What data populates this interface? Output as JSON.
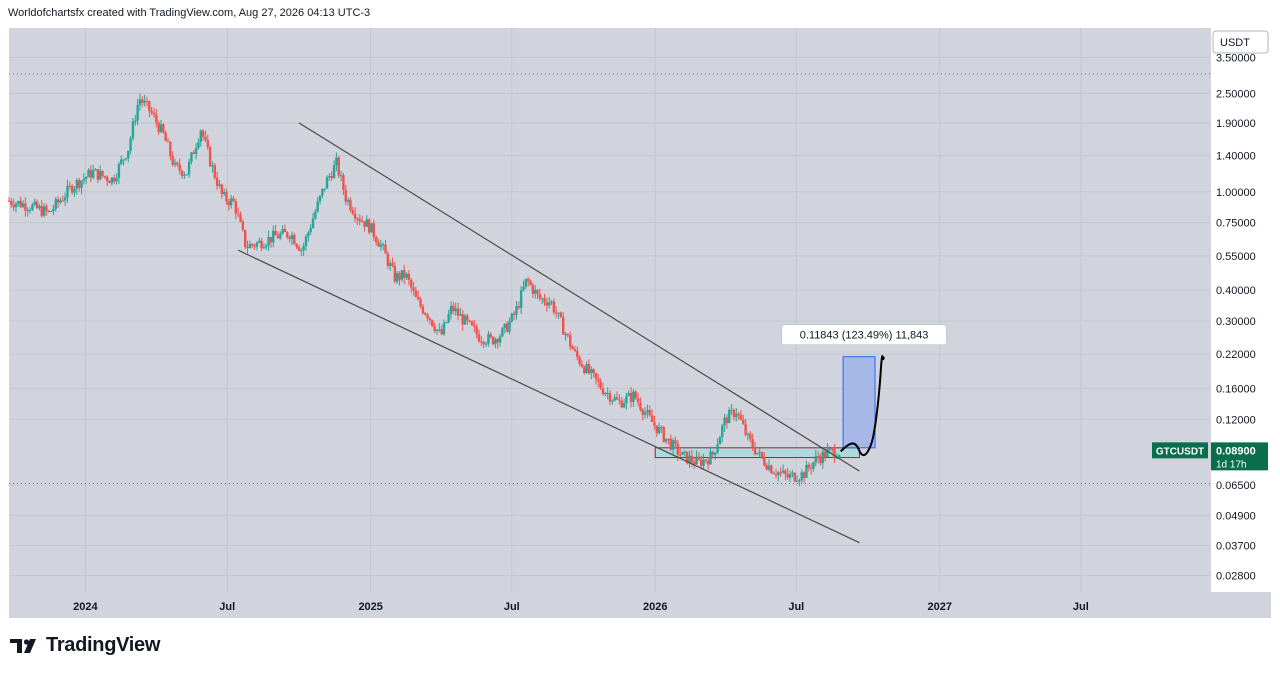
{
  "header": {
    "caption": "Worldofchartsfx created with TradingView.com, Aug 27, 2026 04:13 UTC-3"
  },
  "footer": {
    "brand": "TradingView"
  },
  "colors": {
    "background": "#d1d4dc",
    "grid": "#c3c7d0",
    "candle_up": "#26a69a",
    "candle_down": "#ef5350",
    "trendline": "#4a4a4a",
    "projection_fill": "#9fb3e6",
    "projection_border": "#2962ff",
    "zone_fill": "#a8d8dc",
    "zone_border": "#b2182b",
    "price_label": "#0a6e4d"
  },
  "chart_data": {
    "type": "candlestick",
    "symbol_label": "GTCUSDT",
    "last_price": "0.08900",
    "countdown": "1d 17h",
    "currency": "USDT",
    "y_scale": "log",
    "ylim": [
      0.024,
      4.6
    ],
    "y_ticks": [
      "3.50000",
      "2.50000",
      "1.90000",
      "1.40000",
      "1.00000",
      "0.75000",
      "0.55000",
      "0.40000",
      "0.30000",
      "0.22000",
      "0.16000",
      "0.12000",
      "0.08900",
      "0.06500",
      "0.04900",
      "0.03700",
      "0.02800"
    ],
    "x_ticks": [
      "2024",
      "Jul",
      "2025",
      "Jul",
      "2026",
      "Jul",
      "2027",
      "Jul"
    ],
    "x_tick_dates": [
      "2024-01",
      "2024-07",
      "2025-01",
      "2025-07",
      "2026-01",
      "2026-07",
      "2027-01",
      "2027-07"
    ],
    "xlim": [
      "2023-09-25",
      "2027-12-15"
    ],
    "approx_close_path": [
      [
        "2023-09-25",
        0.92
      ],
      [
        "2023-10-20",
        0.88
      ],
      [
        "2023-11-15",
        0.82
      ],
      [
        "2023-12-15",
        1.05
      ],
      [
        "2024-01-10",
        1.2
      ],
      [
        "2024-02-05",
        1.12
      ],
      [
        "2024-02-25",
        1.5
      ],
      [
        "2024-03-10",
        2.4
      ],
      [
        "2024-03-25",
        2.1
      ],
      [
        "2024-04-10",
        1.7
      ],
      [
        "2024-04-25",
        1.25
      ],
      [
        "2024-05-10",
        1.2
      ],
      [
        "2024-05-28",
        1.8
      ],
      [
        "2024-06-10",
        1.3
      ],
      [
        "2024-06-25",
        0.95
      ],
      [
        "2024-07-10",
        0.9
      ],
      [
        "2024-07-25",
        0.6
      ],
      [
        "2024-08-10",
        0.62
      ],
      [
        "2024-09-01",
        0.66
      ],
      [
        "2024-09-20",
        0.68
      ],
      [
        "2024-10-05",
        0.58
      ],
      [
        "2024-10-20",
        0.8
      ],
      [
        "2024-11-05",
        1.1
      ],
      [
        "2024-11-18",
        1.3
      ],
      [
        "2024-11-30",
        0.95
      ],
      [
        "2024-12-15",
        0.8
      ],
      [
        "2024-12-31",
        0.72
      ],
      [
        "2025-01-15",
        0.6
      ],
      [
        "2025-02-01",
        0.45
      ],
      [
        "2025-02-15",
        0.46
      ],
      [
        "2025-03-01",
        0.36
      ],
      [
        "2025-03-15",
        0.32
      ],
      [
        "2025-04-01",
        0.26
      ],
      [
        "2025-04-15",
        0.34
      ],
      [
        "2025-05-01",
        0.3
      ],
      [
        "2025-05-20",
        0.26
      ],
      [
        "2025-06-05",
        0.25
      ],
      [
        "2025-06-20",
        0.27
      ],
      [
        "2025-07-05",
        0.32
      ],
      [
        "2025-07-20",
        0.44
      ],
      [
        "2025-08-05",
        0.37
      ],
      [
        "2025-08-20",
        0.36
      ],
      [
        "2025-09-05",
        0.28
      ],
      [
        "2025-09-20",
        0.22
      ],
      [
        "2025-10-05",
        0.19
      ],
      [
        "2025-10-25",
        0.16
      ],
      [
        "2025-11-15",
        0.14
      ],
      [
        "2025-12-05",
        0.15
      ],
      [
        "2025-12-25",
        0.12
      ],
      [
        "2026-01-15",
        0.1
      ],
      [
        "2026-02-05",
        0.085
      ],
      [
        "2026-02-25",
        0.08
      ],
      [
        "2026-03-15",
        0.085
      ],
      [
        "2026-04-01",
        0.12
      ],
      [
        "2026-04-15",
        0.13
      ],
      [
        "2026-04-30",
        0.1
      ],
      [
        "2026-05-15",
        0.085
      ],
      [
        "2026-06-01",
        0.075
      ],
      [
        "2026-06-20",
        0.07
      ],
      [
        "2026-07-10",
        0.072
      ],
      [
        "2026-07-25",
        0.082
      ],
      [
        "2026-08-10",
        0.088
      ],
      [
        "2026-08-27",
        0.089
      ]
    ],
    "annotations": {
      "measure_label": "0.11843 (123.49%) 11,843",
      "upper_trendline": [
        [
          "2024-10-01",
          1.9
        ],
        [
          "2026-09-20",
          0.074
        ]
      ],
      "lower_trendline": [
        [
          "2024-07-15",
          0.58
        ],
        [
          "2026-09-20",
          0.038
        ]
      ],
      "support_zone": {
        "from": "2026-01-01",
        "to": "2026-09-20",
        "low": 0.084,
        "high": 0.092
      },
      "projection_box": {
        "from": "2026-08-30",
        "to": "2026-10-10",
        "low": 0.092,
        "high": 0.215
      },
      "dotted_high_level": 3.0,
      "dotted_low_level": 0.066
    }
  }
}
